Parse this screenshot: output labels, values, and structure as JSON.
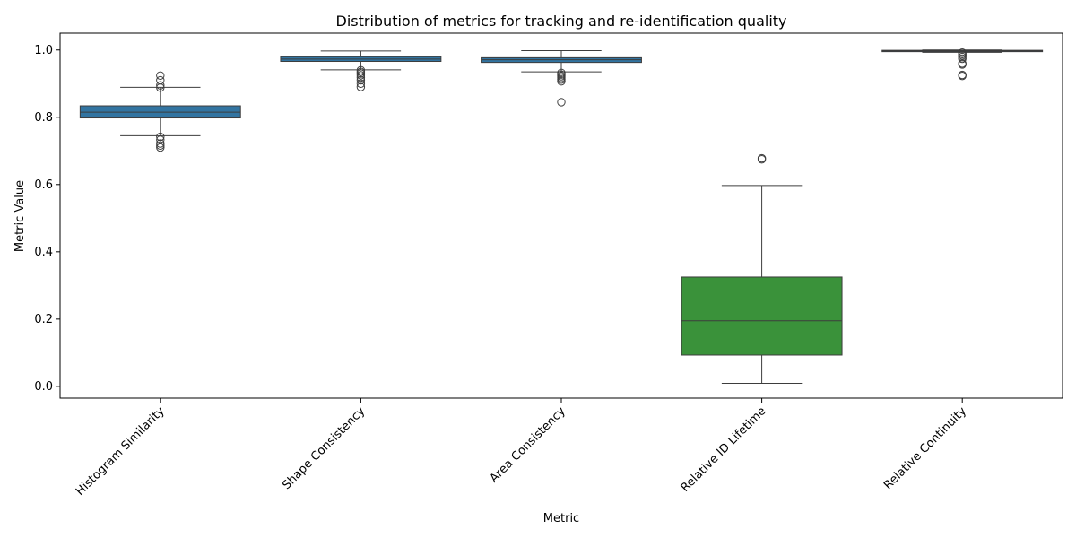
{
  "chart_data": {
    "type": "box",
    "title": "Distribution of metrics for tracking and re-identification quality",
    "xlabel": "Metric",
    "ylabel": "Metric Value",
    "ylim": [
      -0.035,
      1.05
    ],
    "yticks": [
      "0.0",
      "0.2",
      "0.4",
      "0.6",
      "0.8",
      "1.0"
    ],
    "categories": [
      "Histogram Similarity",
      "Shape Consistency",
      "Area Consistency",
      "Relative ID Lifetime",
      "Relative Continuity"
    ],
    "colors": [
      "#3274a1",
      "#3274a1",
      "#3274a1",
      "#3a923a",
      "#3274a1"
    ],
    "boxes": [
      {
        "category": "Histogram Similarity",
        "whisker_low": 0.745,
        "q1": 0.798,
        "median": 0.815,
        "q3": 0.834,
        "whisker_high": 0.889,
        "outliers": [
          0.924,
          0.91,
          0.895,
          0.888,
          0.742,
          0.733,
          0.722,
          0.716,
          0.71
        ]
      },
      {
        "category": "Shape Consistency",
        "whisker_low": 0.941,
        "q1": 0.966,
        "median": 0.973,
        "q3": 0.98,
        "whisker_high": 0.997,
        "outliers": [
          0.94,
          0.935,
          0.93,
          0.925,
          0.918,
          0.91,
          0.9,
          0.89
        ]
      },
      {
        "category": "Area Consistency",
        "whisker_low": 0.935,
        "q1": 0.963,
        "median": 0.971,
        "q3": 0.977,
        "whisker_high": 0.998,
        "outliers": [
          0.932,
          0.927,
          0.922,
          0.917,
          0.912,
          0.907,
          0.845
        ]
      },
      {
        "category": "Relative ID Lifetime",
        "whisker_low": 0.009,
        "q1": 0.093,
        "median": 0.195,
        "q3": 0.325,
        "whisker_high": 0.597,
        "outliers": [
          0.678,
          0.675
        ]
      },
      {
        "category": "Relative Continuity",
        "whisker_low": 0.993,
        "q1": 0.995,
        "median": 0.997,
        "q3": 0.999,
        "whisker_high": 1.0,
        "outliers": [
          0.992,
          0.988,
          0.984,
          0.979,
          0.974,
          0.96,
          0.957,
          0.926,
          0.923
        ]
      }
    ]
  }
}
